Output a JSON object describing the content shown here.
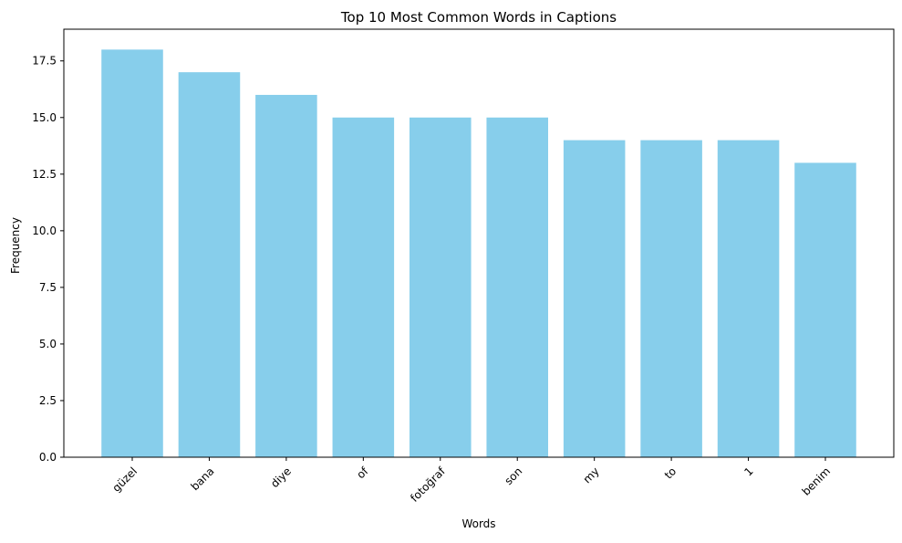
{
  "chart_data": {
    "type": "bar",
    "title": "Top 10 Most Common Words in Captions",
    "xlabel": "Words",
    "ylabel": "Frequency",
    "categories": [
      "güzel",
      "bana",
      "diye",
      "of",
      "fotoğraf",
      "son",
      "my",
      "to",
      "1",
      "benim"
    ],
    "values": [
      18,
      17,
      16,
      15,
      15,
      15,
      14,
      14,
      14,
      13
    ],
    "ylim": [
      0,
      18.9
    ],
    "yticks": [
      0,
      2.5,
      5,
      7.5,
      10,
      12.5,
      15,
      17.5
    ],
    "ytick_labels": [
      "0.0",
      "2.5",
      "5.0",
      "7.5",
      "10.0",
      "12.5",
      "15.0",
      "17.5"
    ],
    "bar_color": "#87ceeb",
    "grid": false,
    "legend": "none"
  }
}
